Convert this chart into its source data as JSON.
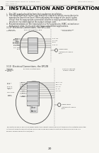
{
  "bg_color": "#f5f4f0",
  "header_left_line1": "Searchline Excel, Issue 10, October 2011",
  "header_left_line2": "Doc. 2104 AA",
  "header_right": "Installation Issue 1",
  "title": "3.  INSTALLATION AND OPERATION",
  "fig_title_1": "3.10  Electrical Connections, the EPC/100",
  "fig_title_2": "3.10  Electrical Connections, the EPC/IB",
  "page_number": "20",
  "text_color": "#333333",
  "line_color": "#555555",
  "intro_lines": [
    "i.   The 24V supply should be from the transformer installation.",
    "ii.  The Searchline Excel control unit should be used as a current source device to",
    "     operate the Searchline Excel. When adjusting the output of the unit it is also",
    "     critical that the appropriate connection scheme is employed and that all test",
    "     results are reviewed against the output voltage used.",
    "iii. Recommendations on the installation in a fire suppression, HVAC, extraction or",
    "     high-power cable, trunks and cable/pipe containment applications."
  ],
  "footer_lines": [
    "The switch shown is providing power protection against a wide-flux short type from the detector mounted",
    "in the unit using these instructions which can cause permanent shorting on the safe and a fire in a",
    "sense-v volume inside the unit/GELA."
  ]
}
